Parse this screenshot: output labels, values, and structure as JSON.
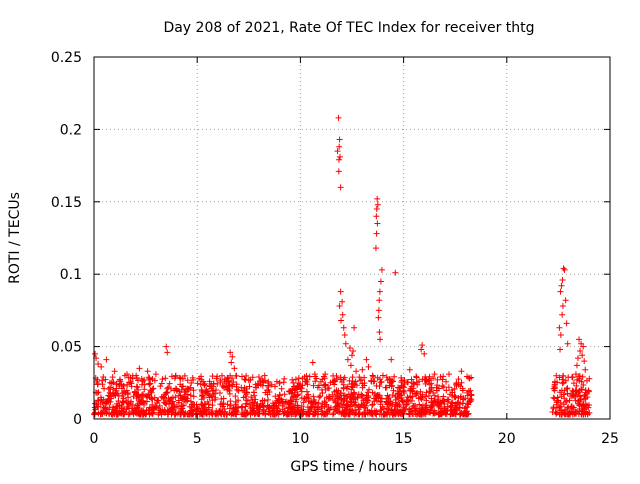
{
  "chart_data": {
    "type": "scatter",
    "title": "Day 208 of 2021, Rate Of TEC Index for receiver thtg",
    "xlabel": "GPS time / hours",
    "ylabel": "ROTI / TECUs",
    "xlim": [
      0,
      25
    ],
    "ylim": [
      0,
      0.25
    ],
    "x_ticks": [
      0,
      5,
      10,
      15,
      20,
      25
    ],
    "x_tick_labels": [
      "0",
      "5",
      "10",
      "15",
      "20",
      "25"
    ],
    "y_ticks": [
      0,
      0.05,
      0.1,
      0.15,
      0.2,
      0.25
    ],
    "y_tick_labels": [
      "0",
      "0.05",
      "0.1",
      "0.15",
      "0.2",
      "0.25"
    ],
    "grid": true,
    "legend": "none",
    "marker": "plus",
    "series": [
      {
        "name": "ROTI",
        "color": "#ff0000",
        "note": "Dense band of values 0.003-0.03 TECU/min from 0-18.3 h and 22.2-24 h; no data 18.3-22.2 h",
        "points": [
          [
            11.85,
            0.208
          ],
          [
            11.9,
            0.193
          ],
          [
            11.88,
            0.188
          ],
          [
            11.8,
            0.185
          ],
          [
            11.92,
            0.181
          ],
          [
            11.87,
            0.179
          ],
          [
            11.86,
            0.171
          ],
          [
            11.95,
            0.16
          ],
          [
            13.72,
            0.152
          ],
          [
            13.75,
            0.148
          ],
          [
            13.7,
            0.145
          ],
          [
            13.68,
            0.14
          ],
          [
            13.73,
            0.135
          ],
          [
            13.69,
            0.128
          ],
          [
            13.66,
            0.118
          ],
          [
            14.6,
            0.101
          ],
          [
            13.95,
            0.103
          ],
          [
            13.9,
            0.095
          ],
          [
            13.85,
            0.088
          ],
          [
            13.82,
            0.082
          ],
          [
            13.8,
            0.075
          ],
          [
            13.78,
            0.07
          ],
          [
            13.83,
            0.06
          ],
          [
            13.86,
            0.055
          ],
          [
            11.95,
            0.088
          ],
          [
            12.02,
            0.081
          ],
          [
            11.9,
            0.078
          ],
          [
            12.05,
            0.072
          ],
          [
            11.97,
            0.068
          ],
          [
            12.1,
            0.063
          ],
          [
            12.15,
            0.058
          ],
          [
            12.2,
            0.052
          ],
          [
            12.4,
            0.049
          ],
          [
            12.5,
            0.044
          ],
          [
            12.6,
            0.063
          ],
          [
            12.55,
            0.047
          ],
          [
            12.3,
            0.041
          ],
          [
            12.45,
            0.037
          ],
          [
            12.7,
            0.033
          ],
          [
            13.0,
            0.034
          ],
          [
            13.3,
            0.036
          ],
          [
            13.5,
            0.03
          ],
          [
            22.75,
            0.104
          ],
          [
            22.8,
            0.103
          ],
          [
            22.7,
            0.096
          ],
          [
            22.65,
            0.092
          ],
          [
            22.6,
            0.088
          ],
          [
            22.85,
            0.082
          ],
          [
            22.72,
            0.078
          ],
          [
            22.68,
            0.072
          ],
          [
            22.9,
            0.066
          ],
          [
            22.55,
            0.063
          ],
          [
            22.62,
            0.058
          ],
          [
            22.95,
            0.052
          ],
          [
            22.58,
            0.048
          ],
          [
            23.5,
            0.055
          ],
          [
            23.6,
            0.052
          ],
          [
            23.7,
            0.05
          ],
          [
            23.55,
            0.047
          ],
          [
            23.65,
            0.044
          ],
          [
            23.45,
            0.042
          ],
          [
            23.75,
            0.04
          ],
          [
            23.4,
            0.037
          ],
          [
            23.8,
            0.034
          ],
          [
            23.35,
            0.031
          ],
          [
            0.05,
            0.045
          ],
          [
            0.1,
            0.042
          ],
          [
            0.2,
            0.038
          ],
          [
            0.35,
            0.036
          ],
          [
            0.6,
            0.041
          ],
          [
            1.0,
            0.033
          ],
          [
            1.6,
            0.031
          ],
          [
            2.2,
            0.035
          ],
          [
            2.6,
            0.033
          ],
          [
            3.0,
            0.031
          ],
          [
            3.5,
            0.05
          ],
          [
            3.55,
            0.046
          ],
          [
            4.2,
            0.028
          ],
          [
            4.8,
            0.027
          ],
          [
            5.6,
            0.026
          ],
          [
            6.6,
            0.046
          ],
          [
            6.7,
            0.043
          ],
          [
            6.65,
            0.039
          ],
          [
            6.8,
            0.035
          ],
          [
            7.5,
            0.027
          ],
          [
            8.2,
            0.025
          ],
          [
            9.0,
            0.025
          ],
          [
            9.6,
            0.027
          ],
          [
            10.6,
            0.039
          ],
          [
            10.7,
            0.031
          ],
          [
            11.2,
            0.031
          ],
          [
            15.9,
            0.051
          ],
          [
            15.85,
            0.048
          ],
          [
            16.0,
            0.045
          ],
          [
            14.0,
            0.03
          ],
          [
            16.5,
            0.031
          ],
          [
            17.2,
            0.031
          ],
          [
            17.8,
            0.033
          ],
          [
            18.2,
            0.028
          ],
          [
            15.3,
            0.034
          ],
          [
            14.4,
            0.041
          ],
          [
            13.2,
            0.041
          ]
        ]
      }
    ],
    "dense_band": {
      "segments": [
        [
          0.0,
          18.3
        ],
        [
          22.2,
          24.0
        ]
      ],
      "y_range": [
        0.003,
        0.03
      ]
    }
  }
}
